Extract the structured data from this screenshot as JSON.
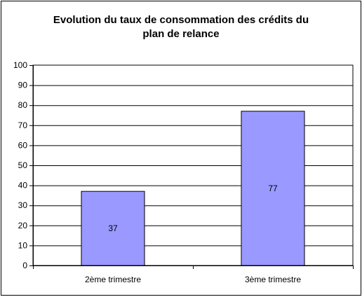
{
  "chart_data": {
    "type": "bar",
    "title_lines": [
      "Evolution du taux de consommation des crédits du",
      "plan de relance"
    ],
    "categories": [
      "2ème trimestre",
      "3ème trimestre"
    ],
    "values": [
      37,
      77
    ],
    "data_labels": [
      "37",
      "77"
    ],
    "ylim": [
      0,
      100
    ],
    "yticks": [
      "0",
      "10",
      "20",
      "30",
      "40",
      "50",
      "60",
      "70",
      "80",
      "90",
      "100"
    ],
    "grid": true,
    "legend": "none",
    "colors": {
      "bar_fill": "#9999FF",
      "bar_stroke": "#000000",
      "gridline": "#000000",
      "plot_background": "#FFFFFF",
      "outer_border": "#000000"
    }
  }
}
